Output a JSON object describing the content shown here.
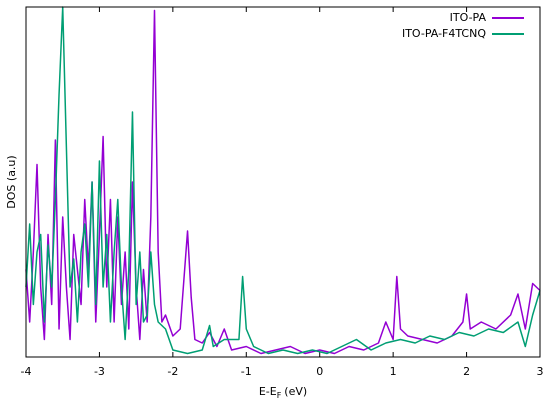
{
  "chart_data": {
    "type": "line",
    "xlabel": {
      "main": "E-E",
      "sub": "F",
      "unit": "(eV)"
    },
    "ylabel": "DOS (a.u)",
    "xlim": [
      -4,
      3
    ],
    "xticks": [
      -4,
      -3,
      -2,
      -1,
      0,
      1,
      2,
      3
    ],
    "ylim": [
      0,
      100
    ],
    "legend": "top-right",
    "series": [
      {
        "name": "ITO-PA",
        "color": "#9400d3",
        "x": [
          -4.0,
          -3.95,
          -3.9,
          -3.85,
          -3.8,
          -3.75,
          -3.7,
          -3.65,
          -3.6,
          -3.55,
          -3.5,
          -3.45,
          -3.4,
          -3.35,
          -3.3,
          -3.25,
          -3.2,
          -3.15,
          -3.1,
          -3.05,
          -3.0,
          -2.95,
          -2.9,
          -2.85,
          -2.8,
          -2.75,
          -2.7,
          -2.65,
          -2.6,
          -2.55,
          -2.5,
          -2.45,
          -2.4,
          -2.35,
          -2.3,
          -2.25,
          -2.2,
          -2.15,
          -2.1,
          -2.0,
          -1.9,
          -1.8,
          -1.75,
          -1.7,
          -1.6,
          -1.5,
          -1.4,
          -1.3,
          -1.2,
          -1.0,
          -0.8,
          -0.6,
          -0.4,
          -0.2,
          0.0,
          0.2,
          0.4,
          0.6,
          0.8,
          0.9,
          1.0,
          1.05,
          1.1,
          1.2,
          1.4,
          1.6,
          1.8,
          1.95,
          2.0,
          2.05,
          2.2,
          2.4,
          2.6,
          2.7,
          2.8,
          2.9,
          3.0
        ],
        "values": [
          25,
          10,
          30,
          55,
          20,
          5,
          35,
          15,
          62,
          8,
          40,
          20,
          5,
          35,
          25,
          15,
          45,
          25,
          50,
          10,
          35,
          63,
          20,
          45,
          10,
          40,
          15,
          30,
          8,
          50,
          20,
          5,
          25,
          10,
          40,
          99,
          30,
          10,
          12,
          6,
          8,
          36,
          17,
          5,
          4,
          7,
          3,
          8,
          2,
          3,
          1,
          2,
          3,
          1,
          2,
          1,
          3,
          2,
          4,
          10,
          5,
          23,
          8,
          6,
          5,
          4,
          6,
          10,
          18,
          8,
          10,
          8,
          12,
          18,
          8,
          21,
          19
        ]
      },
      {
        "name": "ITO-PA-F4TCNQ",
        "color": "#009e73",
        "x": [
          -4.0,
          -3.95,
          -3.9,
          -3.85,
          -3.8,
          -3.75,
          -3.7,
          -3.65,
          -3.6,
          -3.55,
          -3.5,
          -3.45,
          -3.4,
          -3.35,
          -3.3,
          -3.25,
          -3.2,
          -3.15,
          -3.1,
          -3.05,
          -3.0,
          -2.95,
          -2.9,
          -2.85,
          -2.8,
          -2.75,
          -2.7,
          -2.65,
          -2.6,
          -2.55,
          -2.5,
          -2.45,
          -2.4,
          -2.35,
          -2.3,
          -2.25,
          -2.2,
          -2.1,
          -2.0,
          -1.8,
          -1.6,
          -1.5,
          -1.45,
          -1.3,
          -1.1,
          -1.05,
          -1.0,
          -0.9,
          -0.7,
          -0.5,
          -0.3,
          -0.1,
          0.1,
          0.3,
          0.5,
          0.7,
          0.9,
          1.1,
          1.3,
          1.5,
          1.7,
          1.9,
          2.1,
          2.3,
          2.5,
          2.7,
          2.8,
          2.9,
          3.0
        ],
        "values": [
          20,
          38,
          15,
          30,
          35,
          10,
          32,
          20,
          45,
          75,
          100,
          60,
          20,
          28,
          10,
          30,
          38,
          20,
          50,
          15,
          56,
          20,
          35,
          10,
          30,
          45,
          20,
          5,
          25,
          70,
          15,
          30,
          10,
          12,
          30,
          15,
          10,
          8,
          2,
          1,
          2,
          9,
          3,
          5,
          5,
          23,
          8,
          3,
          1,
          2,
          1,
          2,
          1,
          3,
          5,
          2,
          4,
          5,
          4,
          6,
          5,
          7,
          6,
          8,
          7,
          10,
          3,
          12,
          19
        ]
      }
    ]
  }
}
